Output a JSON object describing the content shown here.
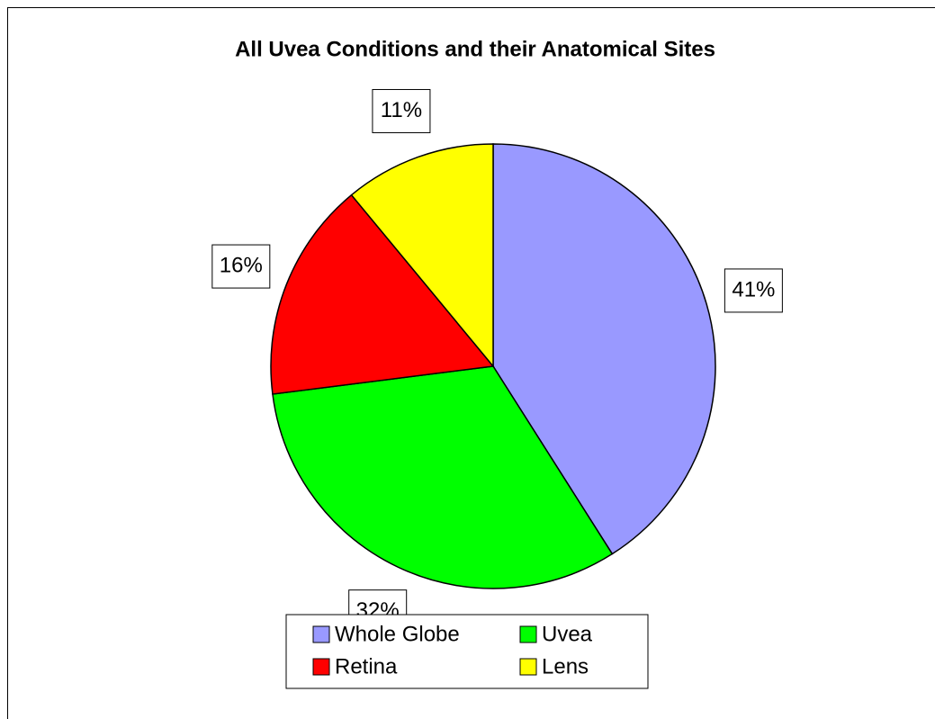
{
  "chart_data": {
    "type": "pie",
    "title": "All Uvea Conditions and their Anatomical Sites",
    "categories": [
      "Whole Globe",
      "Uvea",
      "Retina",
      "Lens"
    ],
    "values": [
      41,
      32,
      16,
      11
    ],
    "value_labels": [
      "41%",
      "32%",
      "16%",
      "11%"
    ],
    "colors": [
      "#9999ff",
      "#00ff00",
      "#ff0000",
      "#ffff00"
    ],
    "legend": "bottom"
  }
}
